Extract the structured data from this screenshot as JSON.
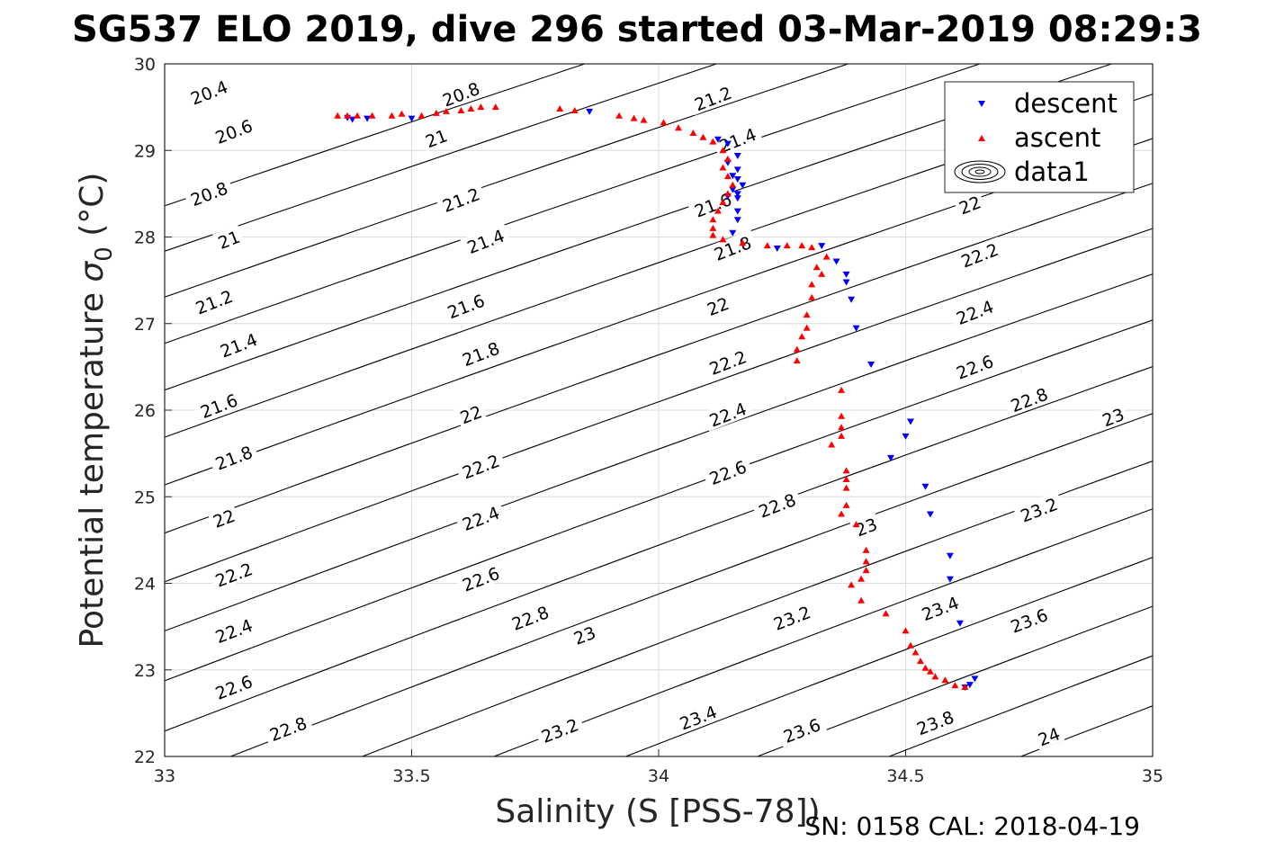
{
  "chart_data": {
    "type": "scatter",
    "title": "SG537 ELO 2019, dive 296 started 03-Mar-2019 08:29:3",
    "xlabel": "Salinity (S [PSS-78])",
    "ylabel_main": "Potential temperature ",
    "ylabel_sigma": "σ",
    "ylabel_sub": "0",
    "ylabel_unit": " (°C)",
    "footer": "SN: 0158  CAL: 2018-04-19",
    "xlim": [
      33,
      35
    ],
    "ylim": [
      22,
      30
    ],
    "xticks": [
      "33",
      "33.5",
      "34",
      "34.5",
      "35"
    ],
    "yticks": [
      "22",
      "23",
      "24",
      "25",
      "26",
      "27",
      "28",
      "29",
      "30"
    ],
    "grid": true,
    "legend_position": "top-right",
    "legend": [
      "descent",
      "ascent",
      "data1"
    ],
    "colors": {
      "descent": "#0000ff",
      "ascent": "#ff0000",
      "contour": "#000000",
      "grid": "#dcdcdc",
      "axes": "#262626"
    },
    "contours": {
      "levels": [
        20.4,
        20.6,
        20.8,
        21,
        21.2,
        21.4,
        21.6,
        21.8,
        22,
        22.2,
        22.4,
        22.6,
        22.8,
        23,
        23.2,
        23.4,
        23.6,
        23.8,
        24,
        24.2
      ],
      "labels": [
        {
          "text": "20.4",
          "s": 33.09,
          "t": 29.67
        },
        {
          "text": "20.6",
          "s": 33.14,
          "t": 29.22
        },
        {
          "text": "20.8",
          "s": 33.09,
          "t": 28.5
        },
        {
          "text": "21",
          "s": 33.13,
          "t": 27.97
        },
        {
          "text": "21.2",
          "s": 33.1,
          "t": 27.25
        },
        {
          "text": "21.4",
          "s": 33.15,
          "t": 26.75
        },
        {
          "text": "21.6",
          "s": 33.11,
          "t": 26.05
        },
        {
          "text": "21.8",
          "s": 33.14,
          "t": 25.45
        },
        {
          "text": "22",
          "s": 33.12,
          "t": 24.75
        },
        {
          "text": "22.2",
          "s": 33.14,
          "t": 24.1
        },
        {
          "text": "22.4",
          "s": 33.14,
          "t": 23.45
        },
        {
          "text": "22.6",
          "s": 33.14,
          "t": 22.8
        },
        {
          "text": "22.8",
          "s": 33.25,
          "t": 22.32
        },
        {
          "text": "20.8",
          "s": 33.6,
          "t": 29.65
        },
        {
          "text": "21",
          "s": 33.55,
          "t": 29.14
        },
        {
          "text": "21.2",
          "s": 33.6,
          "t": 28.43
        },
        {
          "text": "21.4",
          "s": 33.65,
          "t": 27.95
        },
        {
          "text": "21.6",
          "s": 33.61,
          "t": 27.2
        },
        {
          "text": "21.8",
          "s": 33.64,
          "t": 26.65
        },
        {
          "text": "22",
          "s": 33.62,
          "t": 25.95
        },
        {
          "text": "22.2",
          "s": 33.64,
          "t": 25.35
        },
        {
          "text": "22.4",
          "s": 33.64,
          "t": 24.75
        },
        {
          "text": "22.6",
          "s": 33.64,
          "t": 24.05
        },
        {
          "text": "22.8",
          "s": 33.74,
          "t": 23.6
        },
        {
          "text": "23",
          "s": 33.85,
          "t": 23.4
        },
        {
          "text": "23.2",
          "s": 33.8,
          "t": 22.3
        },
        {
          "text": "21.2",
          "s": 34.11,
          "t": 29.6
        },
        {
          "text": "21.4",
          "s": 34.16,
          "t": 29.12
        },
        {
          "text": "21.6",
          "s": 34.11,
          "t": 28.37
        },
        {
          "text": "21.8",
          "s": 34.15,
          "t": 27.87
        },
        {
          "text": "22",
          "s": 34.12,
          "t": 27.2
        },
        {
          "text": "22.2",
          "s": 34.14,
          "t": 26.55
        },
        {
          "text": "22.4",
          "s": 34.14,
          "t": 25.95
        },
        {
          "text": "22.6",
          "s": 34.14,
          "t": 25.28
        },
        {
          "text": "22.8",
          "s": 34.24,
          "t": 24.9
        },
        {
          "text": "23",
          "s": 34.42,
          "t": 24.65
        },
        {
          "text": "23.2",
          "s": 34.27,
          "t": 23.6
        },
        {
          "text": "23.4",
          "s": 34.08,
          "t": 22.45
        },
        {
          "text": "23.6",
          "s": 34.29,
          "t": 22.3
        },
        {
          "text": "22",
          "s": 34.63,
          "t": 28.37
        },
        {
          "text": "22.2",
          "s": 34.65,
          "t": 27.79
        },
        {
          "text": "22.4",
          "s": 34.64,
          "t": 27.13
        },
        {
          "text": "22.6",
          "s": 34.64,
          "t": 26.5
        },
        {
          "text": "22.8",
          "s": 34.75,
          "t": 26.12
        },
        {
          "text": "23",
          "s": 34.92,
          "t": 25.92
        },
        {
          "text": "23.2",
          "s": 34.77,
          "t": 24.85
        },
        {
          "text": "23.4",
          "s": 34.57,
          "t": 23.71
        },
        {
          "text": "23.6",
          "s": 34.75,
          "t": 23.57
        },
        {
          "text": "23.8",
          "s": 34.56,
          "t": 22.39
        },
        {
          "text": "24",
          "s": 34.79,
          "t": 22.23
        }
      ]
    },
    "series": [
      {
        "name": "descent",
        "marker": "triangle-down",
        "points": [
          [
            33.37,
            29.38
          ],
          [
            33.38,
            29.36
          ],
          [
            33.41,
            29.37
          ],
          [
            33.5,
            29.37
          ],
          [
            33.86,
            29.45
          ],
          [
            34.12,
            29.13
          ],
          [
            34.14,
            29.08
          ],
          [
            34.16,
            28.94
          ],
          [
            34.14,
            28.86
          ],
          [
            34.16,
            28.78
          ],
          [
            34.15,
            28.71
          ],
          [
            34.16,
            28.67
          ],
          [
            34.17,
            28.6
          ],
          [
            34.15,
            28.55
          ],
          [
            34.16,
            28.5
          ],
          [
            34.16,
            28.45
          ],
          [
            34.14,
            28.47
          ],
          [
            34.16,
            28.3
          ],
          [
            34.16,
            28.2
          ],
          [
            34.15,
            28.05
          ],
          [
            34.33,
            27.9
          ],
          [
            34.24,
            27.87
          ],
          [
            34.36,
            27.72
          ],
          [
            34.38,
            27.57
          ],
          [
            34.38,
            27.48
          ],
          [
            34.39,
            27.28
          ],
          [
            34.4,
            26.95
          ],
          [
            34.43,
            26.53
          ],
          [
            34.51,
            25.87
          ],
          [
            34.5,
            25.7
          ],
          [
            34.47,
            25.45
          ],
          [
            34.54,
            25.12
          ],
          [
            34.55,
            24.8
          ],
          [
            34.59,
            24.32
          ],
          [
            34.59,
            24.05
          ],
          [
            34.61,
            23.54
          ],
          [
            34.64,
            22.9
          ],
          [
            34.63,
            22.83
          ],
          [
            34.62,
            22.8
          ]
        ]
      },
      {
        "name": "ascent",
        "marker": "triangle-up",
        "points": [
          [
            33.35,
            29.4
          ],
          [
            33.37,
            29.4
          ],
          [
            33.39,
            29.4
          ],
          [
            33.42,
            29.4
          ],
          [
            33.46,
            29.4
          ],
          [
            33.48,
            29.42
          ],
          [
            33.52,
            29.4
          ],
          [
            33.55,
            29.43
          ],
          [
            33.57,
            29.45
          ],
          [
            33.6,
            29.46
          ],
          [
            33.62,
            29.48
          ],
          [
            33.64,
            29.5
          ],
          [
            33.67,
            29.5
          ],
          [
            33.8,
            29.48
          ],
          [
            33.83,
            29.46
          ],
          [
            33.92,
            29.4
          ],
          [
            33.95,
            29.37
          ],
          [
            33.97,
            29.35
          ],
          [
            34.01,
            29.32
          ],
          [
            34.04,
            29.26
          ],
          [
            34.07,
            29.2
          ],
          [
            34.09,
            29.15
          ],
          [
            34.11,
            29.1
          ],
          [
            34.13,
            29.0
          ],
          [
            34.14,
            28.9
          ],
          [
            34.13,
            28.8
          ],
          [
            34.14,
            28.7
          ],
          [
            34.15,
            28.6
          ],
          [
            34.14,
            28.5
          ],
          [
            34.13,
            28.4
          ],
          [
            34.12,
            28.3
          ],
          [
            34.11,
            28.2
          ],
          [
            34.11,
            28.1
          ],
          [
            34.11,
            28.02
          ],
          [
            34.13,
            27.97
          ],
          [
            34.17,
            27.93
          ],
          [
            34.22,
            27.9
          ],
          [
            34.26,
            27.9
          ],
          [
            34.29,
            27.9
          ],
          [
            34.31,
            27.88
          ],
          [
            34.34,
            27.77
          ],
          [
            34.32,
            27.65
          ],
          [
            34.33,
            27.57
          ],
          [
            34.31,
            27.45
          ],
          [
            34.31,
            27.3
          ],
          [
            34.3,
            27.1
          ],
          [
            34.3,
            26.95
          ],
          [
            34.29,
            26.85
          ],
          [
            34.28,
            26.7
          ],
          [
            34.28,
            26.57
          ],
          [
            34.37,
            26.23
          ],
          [
            34.37,
            25.93
          ],
          [
            34.37,
            25.8
          ],
          [
            34.37,
            25.7
          ],
          [
            34.35,
            25.6
          ],
          [
            34.38,
            25.3
          ],
          [
            34.38,
            25.2
          ],
          [
            34.38,
            25.1
          ],
          [
            34.38,
            24.9
          ],
          [
            34.37,
            24.8
          ],
          [
            34.4,
            24.68
          ],
          [
            34.42,
            24.38
          ],
          [
            34.42,
            24.25
          ],
          [
            34.42,
            24.15
          ],
          [
            34.41,
            24.05
          ],
          [
            34.39,
            23.98
          ],
          [
            34.41,
            23.8
          ],
          [
            34.46,
            23.65
          ],
          [
            34.5,
            23.45
          ],
          [
            34.51,
            23.28
          ],
          [
            34.52,
            23.2
          ],
          [
            34.53,
            23.1
          ],
          [
            34.54,
            23.02
          ],
          [
            34.55,
            22.98
          ],
          [
            34.56,
            22.92
          ],
          [
            34.58,
            22.88
          ],
          [
            34.6,
            22.82
          ],
          [
            34.62,
            22.8
          ]
        ]
      }
    ]
  }
}
